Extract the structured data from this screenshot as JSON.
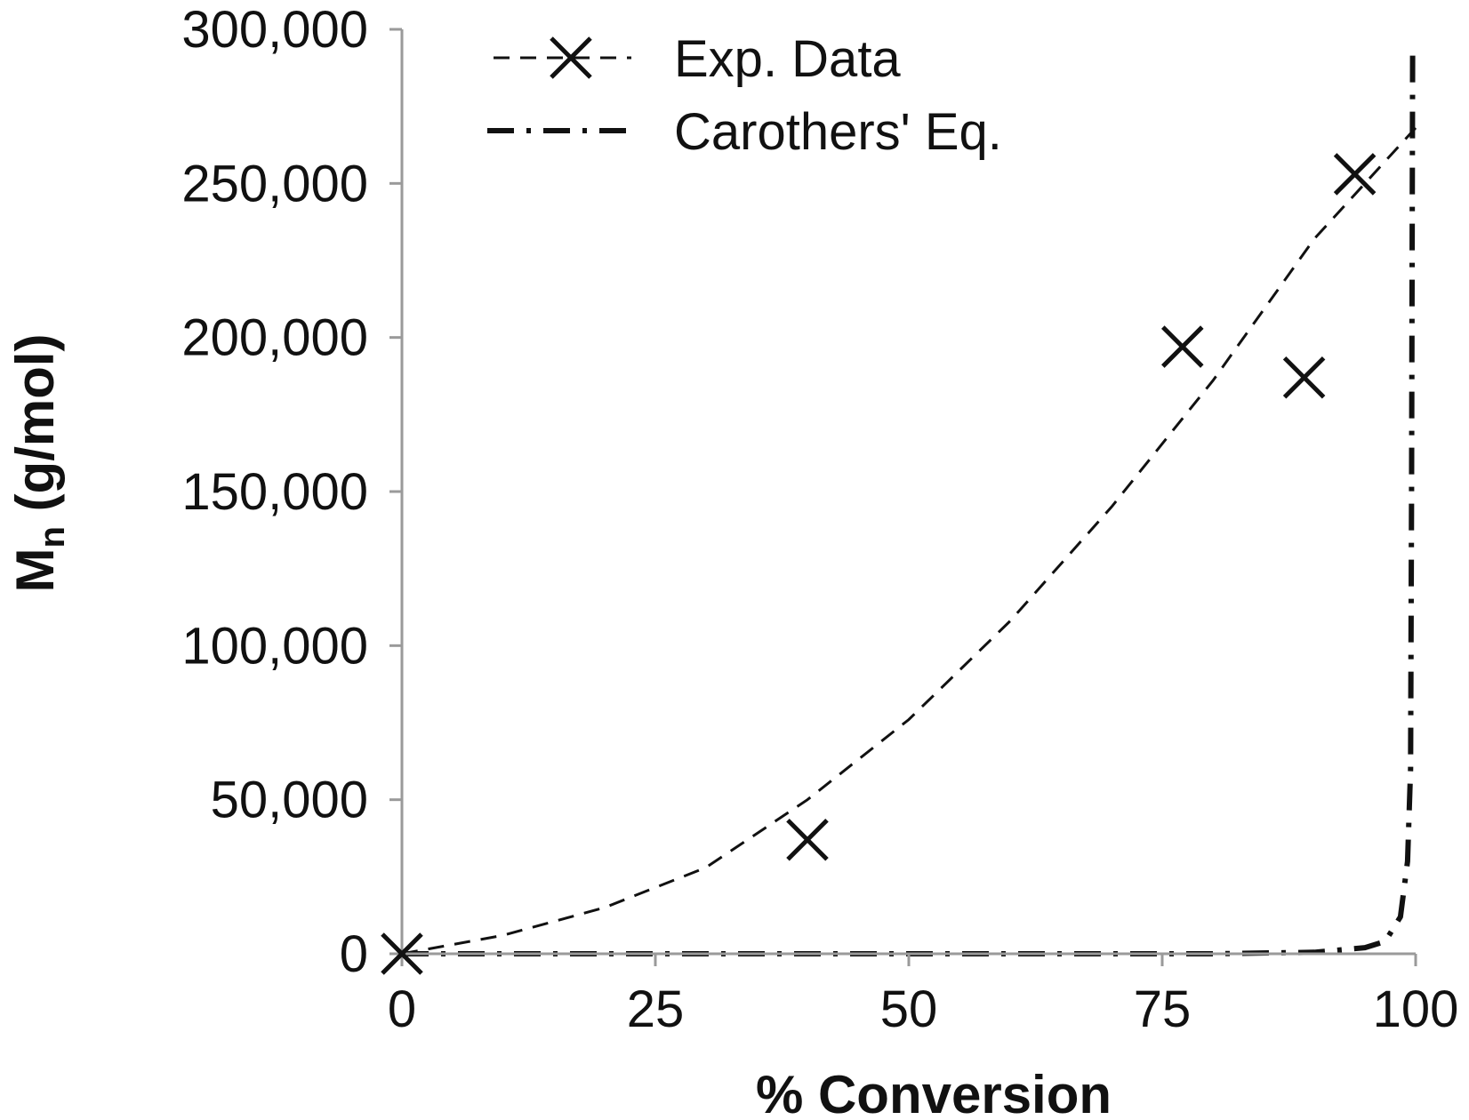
{
  "chart_data": {
    "type": "scatter",
    "xlabel": "% Conversion",
    "ylabel": "Mn (g/mol)",
    "ylabel_parts": {
      "main": "M",
      "sub": "n",
      "rest": " (g/mol)"
    },
    "xlim": [
      0,
      100
    ],
    "ylim": [
      0,
      300000
    ],
    "x_ticks": [
      0,
      25,
      50,
      75,
      100
    ],
    "x_tick_labels": [
      "0",
      "25",
      "50",
      "75",
      "100"
    ],
    "y_ticks": [
      0,
      50000,
      100000,
      150000,
      200000,
      250000,
      300000
    ],
    "y_tick_labels": [
      "0",
      "50,000",
      "100,000",
      "150,000",
      "200,000",
      "250,000",
      "300,000"
    ],
    "grid": false,
    "legend_position": "top-center",
    "series": [
      {
        "name": "Exp. Data",
        "marker": "x",
        "line_style": "dashed",
        "points": [
          {
            "x": 0,
            "y": 0
          },
          {
            "x": 40,
            "y": 37000
          },
          {
            "x": 77,
            "y": 197000
          },
          {
            "x": 89,
            "y": 187000
          },
          {
            "x": 94,
            "y": 253000
          }
        ],
        "trend": [
          {
            "x": 0,
            "y": 0
          },
          {
            "x": 10,
            "y": 6000
          },
          {
            "x": 20,
            "y": 15000
          },
          {
            "x": 30,
            "y": 28000
          },
          {
            "x": 40,
            "y": 50000
          },
          {
            "x": 50,
            "y": 76000
          },
          {
            "x": 60,
            "y": 108000
          },
          {
            "x": 70,
            "y": 145000
          },
          {
            "x": 80,
            "y": 186000
          },
          {
            "x": 90,
            "y": 232000
          },
          {
            "x": 100,
            "y": 268000
          }
        ]
      },
      {
        "name": "Carothers' Eq.",
        "line_style": "dash-dot",
        "points": [
          {
            "x": 0,
            "y": 0
          },
          {
            "x": 50,
            "y": 0
          },
          {
            "x": 80,
            "y": 0
          },
          {
            "x": 90,
            "y": 500
          },
          {
            "x": 95,
            "y": 2000
          },
          {
            "x": 97,
            "y": 4000
          },
          {
            "x": 98.5,
            "y": 12000
          },
          {
            "x": 99.2,
            "y": 30000
          },
          {
            "x": 99.5,
            "y": 60000
          },
          {
            "x": 99.6,
            "y": 150000
          },
          {
            "x": 99.7,
            "y": 292000
          }
        ]
      }
    ]
  }
}
